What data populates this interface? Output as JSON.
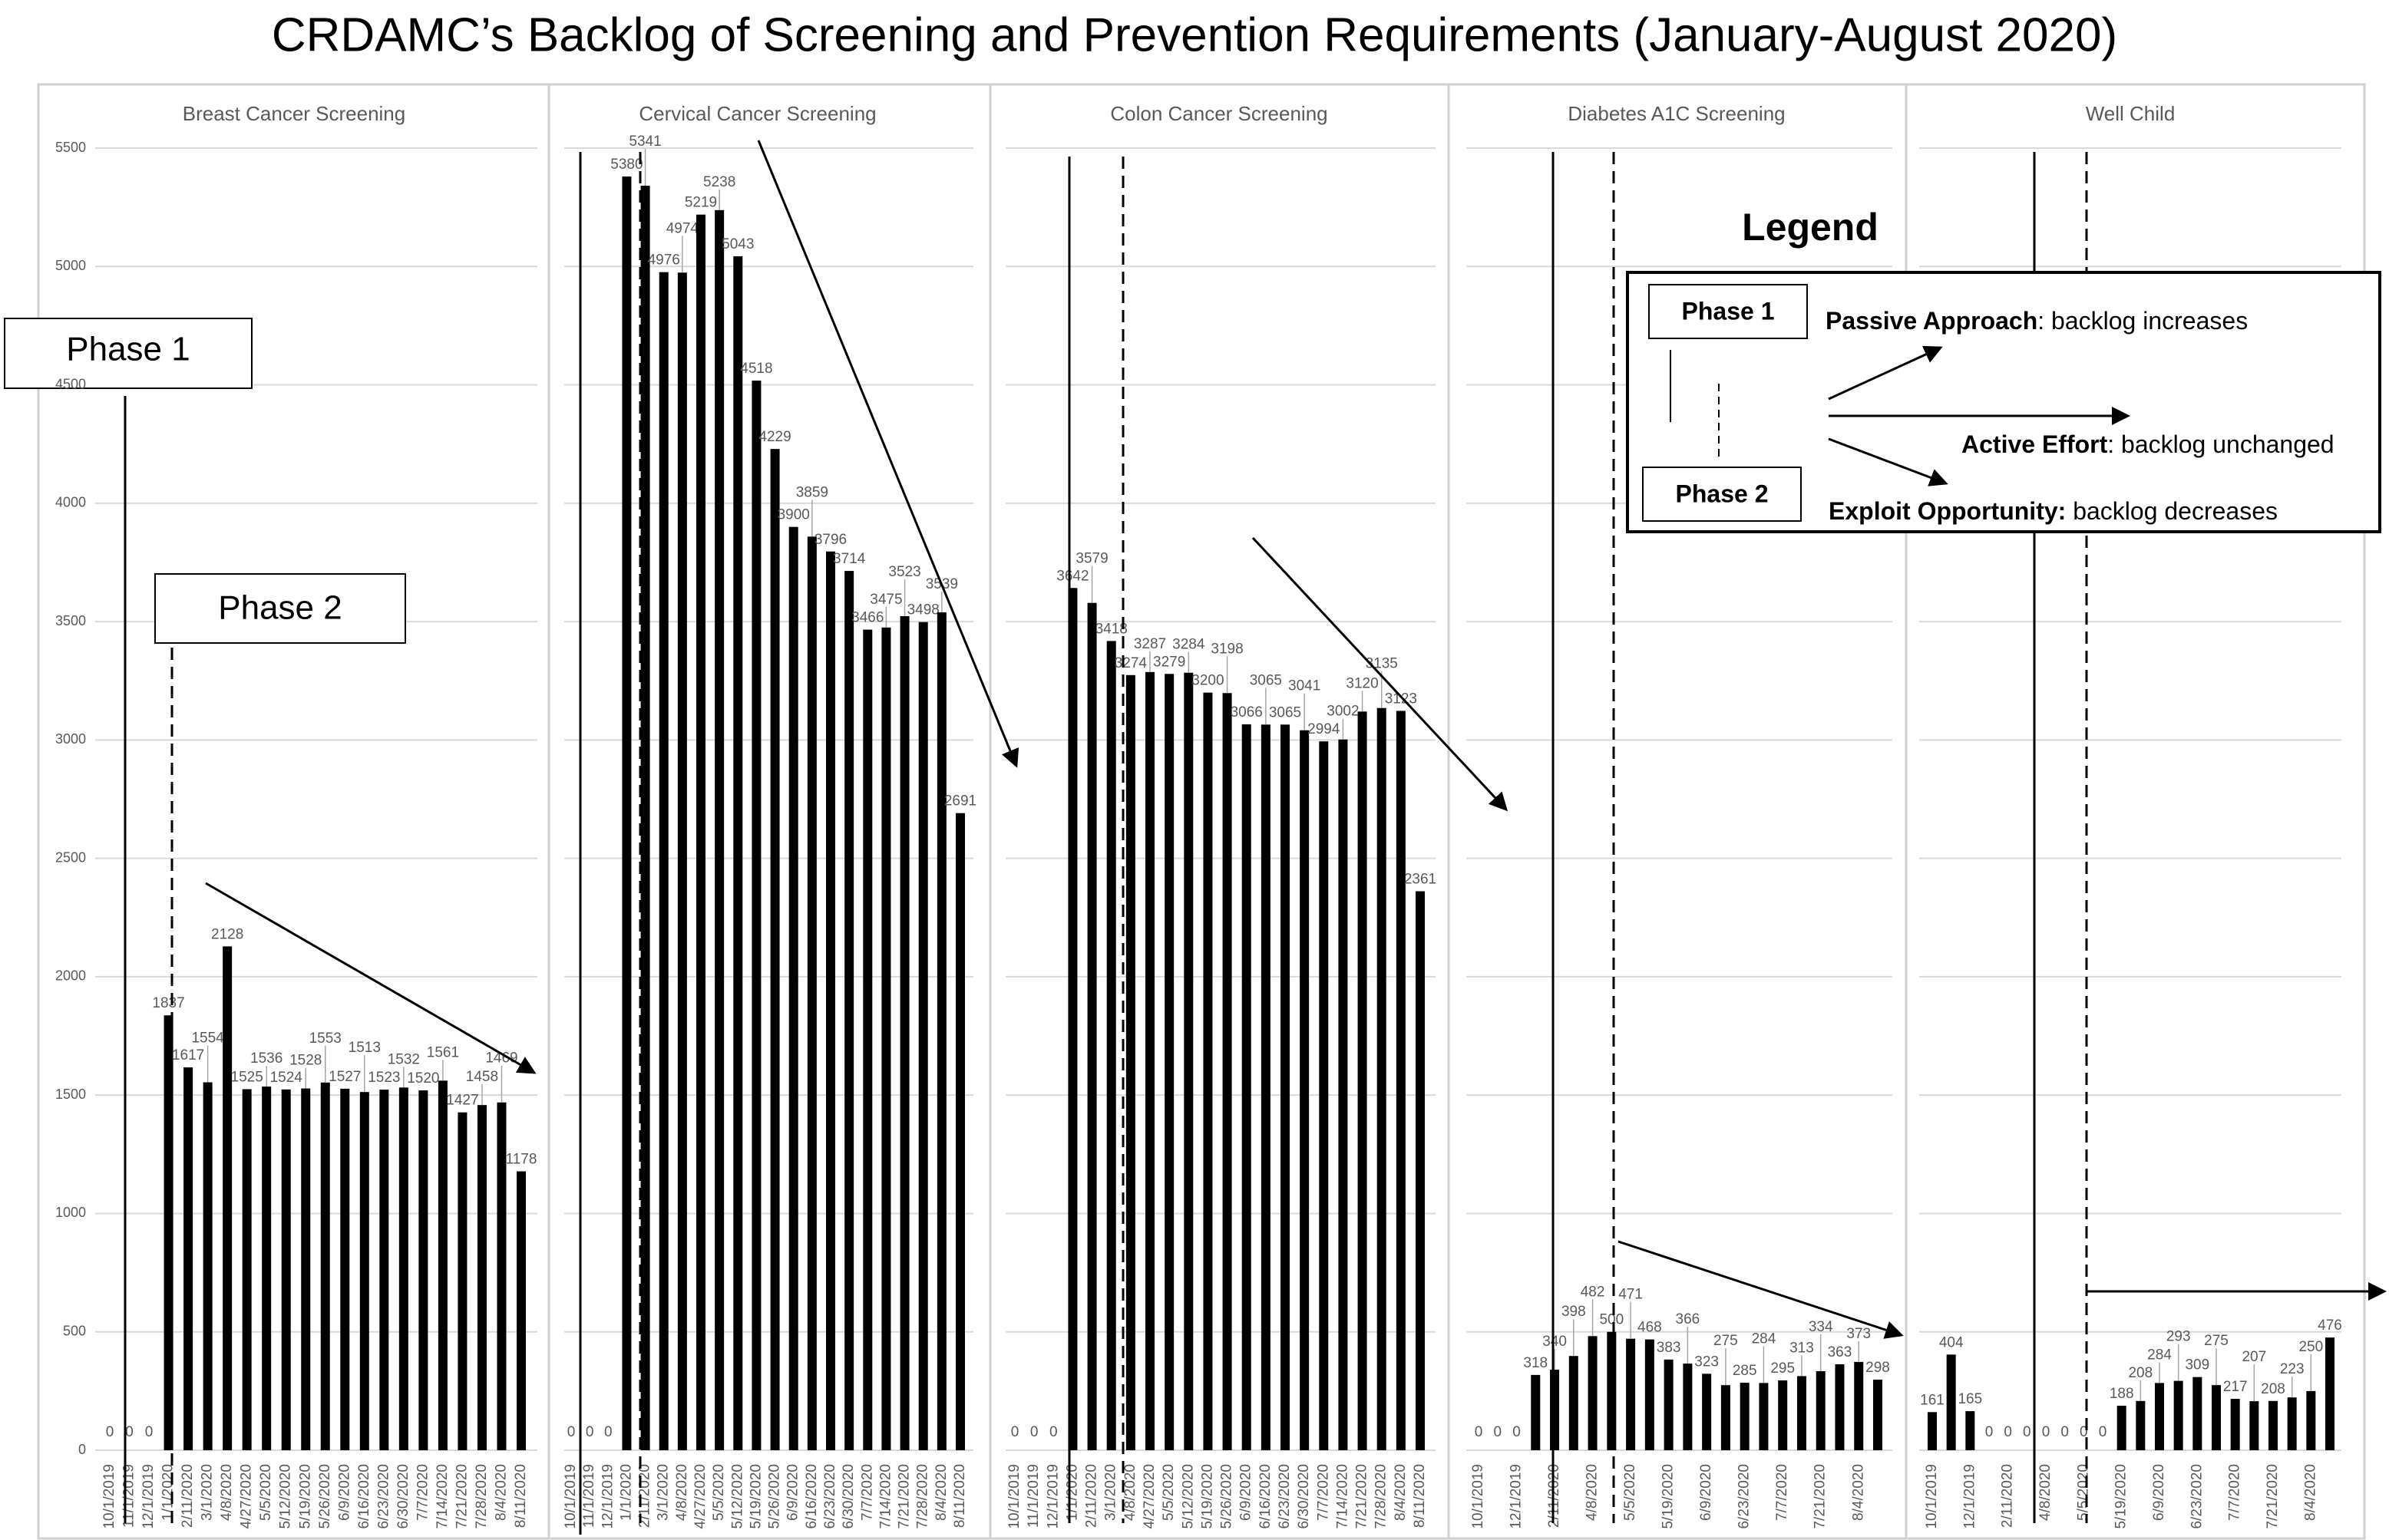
{
  "title": "CRDAMC’s Backlog of Screening and Prevention Requirements (January-August 2020)",
  "phase1_label": "Phase 1",
  "phase2_label": "Phase 2",
  "legend": {
    "title": "Legend",
    "phase1": "Phase 1",
    "phase2": "Phase 2",
    "passive_bold": "Passive Approach",
    "passive_rest": ": backlog increases",
    "active_bold": "Active Effort",
    "active_rest": ": backlog unchanged",
    "exploit_bold": "Exploit Opportunity:",
    "exploit_rest": " backlog decreases"
  },
  "chart_data": [
    {
      "type": "bar",
      "title": "Breast Cancer Screening",
      "categories": [
        "10/1/2019",
        "11/1/2019",
        "12/1/2019",
        "1/1/2020",
        "2/11/2020",
        "3/1/2020",
        "4/8/2020",
        "4/27/2020",
        "5/5/2020",
        "5/12/2020",
        "5/19/2020",
        "5/26/2020",
        "6/9/2020",
        "6/16/2020",
        "6/23/2020",
        "6/30/2020",
        "7/7/2020",
        "7/14/2020",
        "7/21/2020",
        "7/28/2020",
        "8/4/2020",
        "8/11/2020"
      ],
      "values": [
        0,
        0,
        0,
        1837,
        1617,
        1554,
        2128,
        1525,
        1536,
        1524,
        1528,
        1553,
        1527,
        1513,
        1523,
        1532,
        1520,
        1561,
        1427,
        1458,
        1469,
        1178
      ],
      "ylim": [
        0,
        5500
      ],
      "yticks": [
        "0",
        "500",
        "1000",
        "1500",
        "2000",
        "2500",
        "3000",
        "3500",
        "4000",
        "4500",
        "5000",
        "5500"
      ],
      "grid": true
    },
    {
      "type": "bar",
      "title": "Cervical Cancer Screening",
      "categories": [
        "10/1/2019",
        "11/1/2019",
        "12/1/2019",
        "1/1/2020",
        "2/11/2020",
        "3/1/2020",
        "4/8/2020",
        "4/27/2020",
        "5/5/2020",
        "5/12/2020",
        "5/19/2020",
        "5/26/2020",
        "6/9/2020",
        "6/16/2020",
        "6/23/2020",
        "6/30/2020",
        "7/7/2020",
        "7/14/2020",
        "7/21/2020",
        "7/28/2020",
        "8/4/2020",
        "8/11/2020"
      ],
      "values": [
        0,
        0,
        0,
        5380,
        5341,
        4976,
        4974,
        5219,
        5238,
        5043,
        4518,
        4229,
        3900,
        3859,
        3796,
        3714,
        3466,
        3475,
        3523,
        3498,
        3539,
        2691
      ],
      "ylim": [
        0,
        5500
      ],
      "grid": true
    },
    {
      "type": "bar",
      "title": "Colon Cancer Screening",
      "categories": [
        "10/1/2019",
        "11/1/2019",
        "12/1/2019",
        "1/1/2020",
        "2/11/2020",
        "3/1/2020",
        "4/8/2020",
        "4/27/2020",
        "5/5/2020",
        "5/12/2020",
        "5/19/2020",
        "5/26/2020",
        "6/9/2020",
        "6/16/2020",
        "6/23/2020",
        "6/30/2020",
        "7/7/2020",
        "7/14/2020",
        "7/21/2020",
        "7/28/2020",
        "8/4/2020",
        "8/11/2020"
      ],
      "values": [
        0,
        0,
        0,
        3642,
        3579,
        3418,
        3274,
        3287,
        3279,
        3284,
        3200,
        3198,
        3066,
        3065,
        3065,
        3041,
        2994,
        3002,
        3120,
        3135,
        3123,
        2361
      ],
      "ylim": [
        0,
        5500
      ],
      "grid": true
    },
    {
      "type": "bar",
      "title": "Diabetes A1C Screening",
      "x_tick_labels": [
        "10/1/2019",
        "12/1/2019",
        "2/11/2020",
        "4/8/2020",
        "5/5/2020",
        "5/19/2020",
        "6/9/2020",
        "6/23/2020",
        "7/7/2020",
        "7/21/2020",
        "8/4/2020"
      ],
      "values": [
        0,
        0,
        0,
        318,
        340,
        398,
        482,
        500,
        471,
        468,
        383,
        366,
        323,
        275,
        285,
        284,
        295,
        313,
        334,
        363,
        373,
        298
      ],
      "ylim": [
        0,
        5500
      ],
      "grid": true
    },
    {
      "type": "bar",
      "title": "Well Child",
      "x_tick_labels": [
        "10/1/2019",
        "12/1/2019",
        "2/11/2020",
        "4/8/2020",
        "5/5/2020",
        "5/19/2020",
        "6/9/2020",
        "6/23/2020",
        "7/7/2020",
        "7/21/2020",
        "8/4/2020"
      ],
      "values": [
        161,
        404,
        165,
        0,
        0,
        0,
        0,
        0,
        0,
        0,
        188,
        208,
        284,
        293,
        309,
        275,
        217,
        207,
        208,
        223,
        250,
        476
      ],
      "ylim": [
        0,
        5500
      ],
      "grid": true
    }
  ]
}
